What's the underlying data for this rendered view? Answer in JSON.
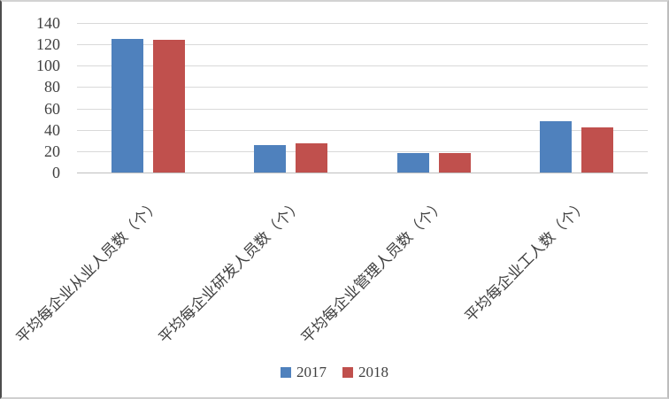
{
  "chart_data": {
    "type": "bar",
    "title": "",
    "xlabel": "",
    "ylabel": "",
    "categories": [
      "平均每企业从业人员数（个）",
      "平均每企业研发人员数（个）",
      "平均每企业管理人员数（个）",
      "平均每企业工人数（个）"
    ],
    "series": [
      {
        "name": "2017",
        "color": "#4F81BD",
        "values": [
          125,
          26,
          18,
          48
        ]
      },
      {
        "name": "2018",
        "color": "#C0504D",
        "values": [
          124,
          27,
          18,
          42
        ]
      }
    ],
    "ylim": [
      0,
      140
    ],
    "yticks": [
      0,
      20,
      40,
      60,
      80,
      100,
      120,
      140
    ],
    "grid": "horizontal",
    "legend_position": "bottom",
    "category_label_rotation_deg": 45
  },
  "colors": {
    "gridline": "#D9D9D9",
    "axis_line": "#BFBFBF",
    "text": "#404040",
    "background": "#FFFFFF"
  }
}
